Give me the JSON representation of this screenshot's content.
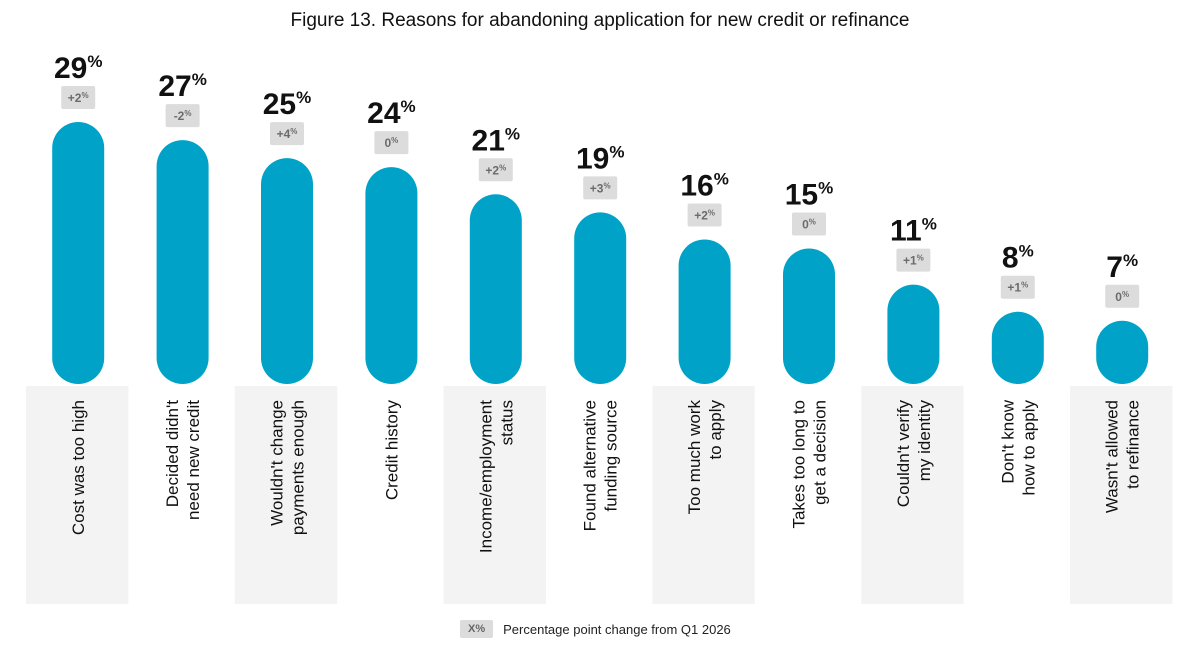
{
  "title": "Figure 13. Reasons for abandoning application for new credit or refinance",
  "legend": {
    "swatch_label": "X%",
    "text": "Percentage point change from Q1 2026"
  },
  "colors": {
    "bar": "#00a3c7",
    "label_band": "#f3f3f3",
    "change_badge": "#dcdcdc",
    "change_text": "#6b6b6b"
  },
  "chart_data": {
    "type": "bar",
    "title": "Figure 13. Reasons for abandoning application for new credit or refinance",
    "categories": [
      [
        "Cost was too high"
      ],
      [
        "Decided didn't",
        "need new credit"
      ],
      [
        "Wouldn't change",
        "payments enough"
      ],
      [
        "Credit history"
      ],
      [
        "Income/employment",
        "status"
      ],
      [
        "Found alternative",
        "funding source"
      ],
      [
        "Too much work",
        "to apply"
      ],
      [
        "Takes too long to",
        "get a decision"
      ],
      [
        "Couldn't verify",
        "my identity"
      ],
      [
        "Don't know",
        "how to apply"
      ],
      [
        "Wasn't allowed",
        "to refinance"
      ]
    ],
    "values": [
      29,
      27,
      25,
      24,
      21,
      19,
      16,
      15,
      11,
      8,
      7
    ],
    "value_suffix": "%",
    "changes": [
      "+2",
      "-2",
      "+4",
      "0",
      "+2",
      "+3",
      "+2",
      "0",
      "+1",
      "+1",
      "0"
    ],
    "change_suffix": "%",
    "ylim": [
      0,
      29
    ],
    "grid": false
  }
}
